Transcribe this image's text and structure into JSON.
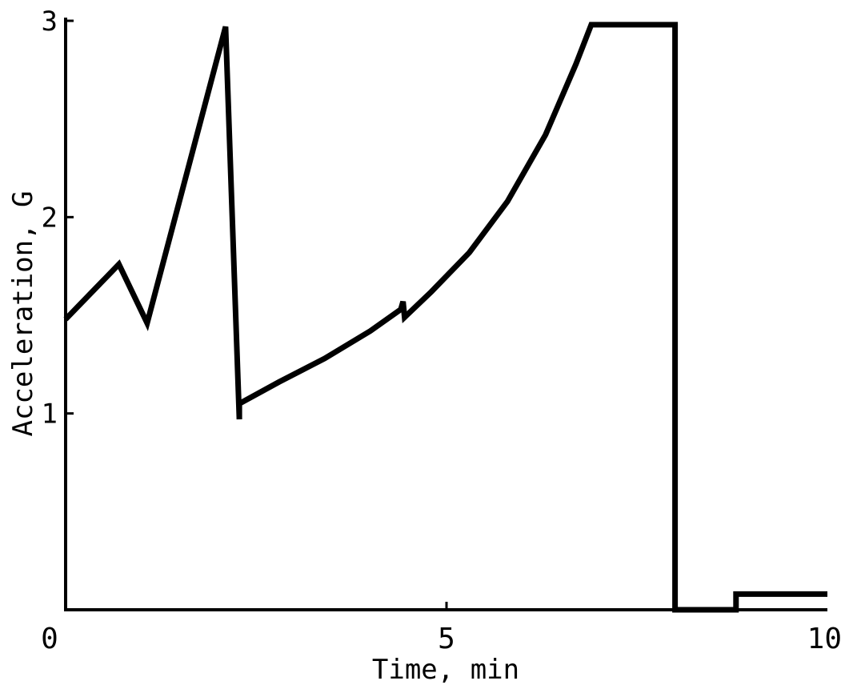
{
  "chart_data": {
    "type": "line",
    "title": "",
    "xlabel": "Time, min",
    "ylabel": "Acceleration, G",
    "xlim": [
      0,
      10
    ],
    "ylim": [
      0,
      3
    ],
    "xticks": [
      0,
      5,
      10
    ],
    "xtick_labels": [
      "0",
      "5",
      "10"
    ],
    "yticks": [
      1,
      2,
      3
    ],
    "ytick_labels": [
      "1",
      "2",
      "3"
    ],
    "grid": false,
    "legend": "none",
    "series": [
      {
        "color": "#000000",
        "points": [
          [
            0.0,
            1.48
          ],
          [
            0.7,
            1.76
          ],
          [
            1.07,
            1.46
          ],
          [
            2.1,
            2.97
          ],
          [
            2.28,
            0.97
          ],
          [
            2.28,
            1.05
          ],
          [
            2.8,
            1.16
          ],
          [
            3.4,
            1.28
          ],
          [
            4.0,
            1.42
          ],
          [
            4.4,
            1.53
          ],
          [
            4.43,
            1.57
          ],
          [
            4.45,
            1.49
          ],
          [
            4.8,
            1.62
          ],
          [
            5.3,
            1.82
          ],
          [
            5.8,
            2.08
          ],
          [
            6.3,
            2.42
          ],
          [
            6.7,
            2.78
          ],
          [
            6.9,
            2.98
          ],
          [
            8.0,
            2.98
          ],
          [
            8.0,
            0.0
          ],
          [
            8.8,
            0.0
          ],
          [
            8.8,
            0.08
          ],
          [
            10.0,
            0.08
          ]
        ]
      }
    ]
  }
}
